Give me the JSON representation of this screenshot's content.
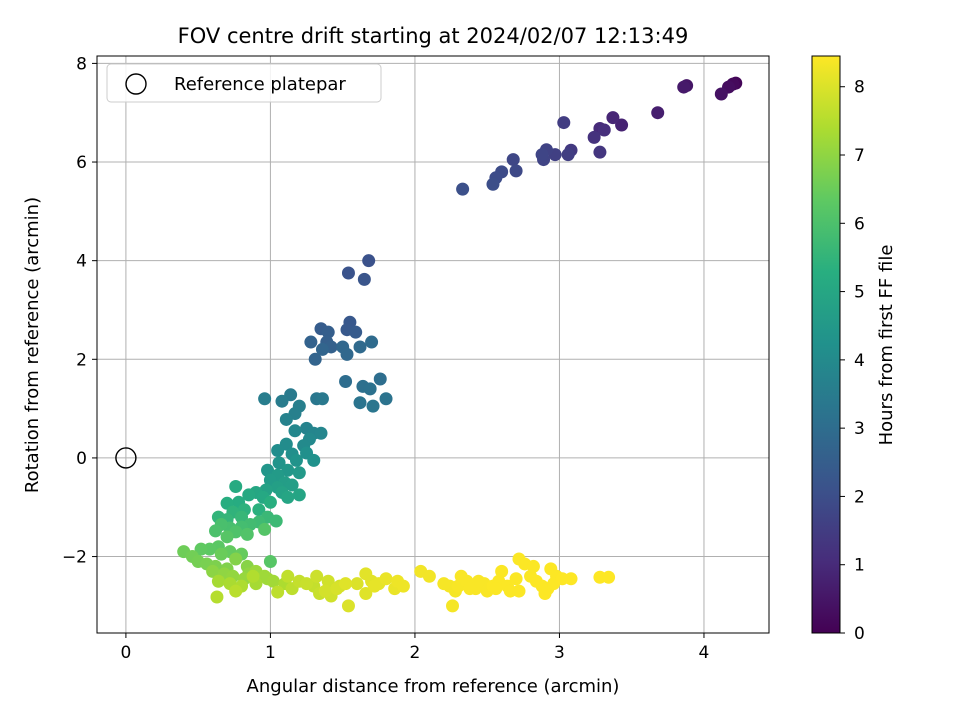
{
  "chart_data": {
    "type": "scatter",
    "title": "FOV centre drift starting at 2024/02/07 12:13:49",
    "xlabel": "Angular distance from reference (arcmin)",
    "ylabel": "Rotation from reference (arcmin)",
    "xlim": [
      -0.2,
      4.45
    ],
    "ylim": [
      -3.55,
      8.15
    ],
    "xticks": [
      0,
      1,
      2,
      3,
      4
    ],
    "xtick_labels": [
      "0",
      "1",
      "2",
      "3",
      "4"
    ],
    "yticks": [
      -2,
      0,
      2,
      4,
      6,
      8
    ],
    "ytick_labels": [
      "−2",
      "0",
      "2",
      "4",
      "6",
      "8"
    ],
    "grid": true,
    "legend": {
      "placement": "top-left",
      "entries": [
        "Reference platepar"
      ]
    },
    "colorbar": {
      "label": "Hours from first FF file",
      "colormap": "viridis",
      "range": [
        0,
        8.45
      ],
      "ticks": [
        0,
        1,
        2,
        3,
        4,
        5,
        6,
        7,
        8
      ],
      "tick_labels": [
        "0",
        "1",
        "2",
        "3",
        "4",
        "5",
        "6",
        "7",
        "8"
      ]
    },
    "reference": {
      "name": "Reference platepar",
      "x": 0,
      "y": 0
    },
    "series": [
      {
        "color_by": "Hours from first FF file",
        "points": [
          [
            4.22,
            7.6,
            0.1
          ],
          [
            4.2,
            7.58,
            0.2
          ],
          [
            4.17,
            7.52,
            0.3
          ],
          [
            4.12,
            7.38,
            0.4
          ],
          [
            3.88,
            7.55,
            0.5
          ],
          [
            3.86,
            7.52,
            0.6
          ],
          [
            3.68,
            7.0,
            0.7
          ],
          [
            3.43,
            6.75,
            0.8
          ],
          [
            3.37,
            6.9,
            0.9
          ],
          [
            3.28,
            6.68,
            1.0
          ],
          [
            3.31,
            6.65,
            1.1
          ],
          [
            3.24,
            6.5,
            1.2
          ],
          [
            3.28,
            6.2,
            1.3
          ],
          [
            3.08,
            6.24,
            1.4
          ],
          [
            3.03,
            6.8,
            1.5
          ],
          [
            3.06,
            6.15,
            1.55
          ],
          [
            2.97,
            6.15,
            1.6
          ],
          [
            2.91,
            6.25,
            1.65
          ],
          [
            2.89,
            6.05,
            1.7
          ],
          [
            2.88,
            6.15,
            1.75
          ],
          [
            2.68,
            6.05,
            1.8
          ],
          [
            2.7,
            5.82,
            1.85
          ],
          [
            2.6,
            5.8,
            1.9
          ],
          [
            2.56,
            5.68,
            1.95
          ],
          [
            2.54,
            5.55,
            2.0
          ],
          [
            2.33,
            5.45,
            2.05
          ],
          [
            1.68,
            4.0,
            2.1
          ],
          [
            1.54,
            3.75,
            2.15
          ],
          [
            1.65,
            3.62,
            2.2
          ],
          [
            1.55,
            2.75,
            2.3
          ],
          [
            1.53,
            2.6,
            2.35
          ],
          [
            1.59,
            2.55,
            2.4
          ],
          [
            1.35,
            2.62,
            2.45
          ],
          [
            1.4,
            2.55,
            2.5
          ],
          [
            1.39,
            2.35,
            2.55
          ],
          [
            1.42,
            2.25,
            2.6
          ],
          [
            1.28,
            2.35,
            2.65
          ],
          [
            1.31,
            2.0,
            2.7
          ],
          [
            1.36,
            2.2,
            2.75
          ],
          [
            1.5,
            2.25,
            2.8
          ],
          [
            1.53,
            2.1,
            2.85
          ],
          [
            1.62,
            2.25,
            2.9
          ],
          [
            1.7,
            2.35,
            2.95
          ],
          [
            1.52,
            1.55,
            3.0
          ],
          [
            1.76,
            1.6,
            3.05
          ],
          [
            1.64,
            1.45,
            3.1
          ],
          [
            1.69,
            1.4,
            3.15
          ],
          [
            1.8,
            1.2,
            3.2
          ],
          [
            1.62,
            1.12,
            3.25
          ],
          [
            1.71,
            1.05,
            3.3
          ],
          [
            1.32,
            1.2,
            3.35
          ],
          [
            1.36,
            1.2,
            3.4
          ],
          [
            1.14,
            1.28,
            3.45
          ],
          [
            1.08,
            1.15,
            3.5
          ],
          [
            0.96,
            1.2,
            3.55
          ],
          [
            1.2,
            1.05,
            3.6
          ],
          [
            1.17,
            0.9,
            3.65
          ],
          [
            1.11,
            0.78,
            3.7
          ],
          [
            1.25,
            0.6,
            3.75
          ],
          [
            1.3,
            0.5,
            3.8
          ],
          [
            1.35,
            0.5,
            3.85
          ],
          [
            1.17,
            0.55,
            3.9
          ],
          [
            1.27,
            0.38,
            3.95
          ],
          [
            1.23,
            0.25,
            4.0
          ],
          [
            1.11,
            0.28,
            4.05
          ],
          [
            1.05,
            0.15,
            4.1
          ],
          [
            1.15,
            0.08,
            4.15
          ],
          [
            1.25,
            0.1,
            4.2
          ],
          [
            1.3,
            -0.05,
            4.25
          ],
          [
            1.18,
            -0.05,
            4.3
          ],
          [
            1.06,
            -0.1,
            4.35
          ],
          [
            0.98,
            -0.25,
            4.4
          ],
          [
            1.12,
            -0.25,
            4.45
          ],
          [
            1.2,
            -0.3,
            4.5
          ],
          [
            1.05,
            -0.35,
            4.55
          ],
          [
            1.0,
            -0.45,
            4.6
          ],
          [
            1.1,
            -0.5,
            4.65
          ],
          [
            1.15,
            -0.55,
            4.7
          ],
          [
            1.05,
            -0.6,
            4.75
          ],
          [
            0.97,
            -0.65,
            4.8
          ],
          [
            1.08,
            -0.7,
            4.85
          ],
          [
            1.2,
            -0.75,
            4.9
          ],
          [
            1.12,
            -0.8,
            4.95
          ],
          [
            0.9,
            -0.7,
            5.0
          ],
          [
            0.95,
            -0.8,
            5.05
          ],
          [
            0.85,
            -0.75,
            5.1
          ],
          [
            0.76,
            -0.58,
            5.15
          ],
          [
            0.78,
            -0.9,
            5.2
          ],
          [
            0.7,
            -0.92,
            5.25
          ],
          [
            1.0,
            -0.9,
            5.3
          ],
          [
            0.92,
            -1.05,
            5.35
          ],
          [
            0.82,
            -1.05,
            5.4
          ],
          [
            0.74,
            -1.1,
            5.45
          ],
          [
            0.64,
            -1.2,
            5.5
          ],
          [
            0.7,
            -1.25,
            5.55
          ],
          [
            0.8,
            -1.2,
            5.6
          ],
          [
            0.98,
            -1.2,
            5.65
          ],
          [
            1.04,
            -1.28,
            5.7
          ],
          [
            0.92,
            -1.3,
            5.75
          ],
          [
            0.86,
            -1.35,
            5.8
          ],
          [
            0.8,
            -1.4,
            5.85
          ],
          [
            0.72,
            -1.42,
            5.9
          ],
          [
            0.66,
            -1.35,
            5.95
          ],
          [
            0.62,
            -1.48,
            6.0
          ],
          [
            0.76,
            -1.5,
            6.05
          ],
          [
            0.84,
            -1.55,
            6.1
          ],
          [
            0.96,
            -1.45,
            6.15
          ],
          [
            0.7,
            -1.6,
            6.2
          ],
          [
            0.64,
            -1.8,
            6.25
          ],
          [
            0.58,
            -1.85,
            6.3
          ],
          [
            0.52,
            -1.85,
            6.35
          ],
          [
            0.72,
            -1.9,
            6.4
          ],
          [
            0.8,
            -1.95,
            6.45
          ],
          [
            0.66,
            -1.95,
            6.5
          ],
          [
            0.4,
            -1.9,
            6.55
          ],
          [
            0.46,
            -2.0,
            6.6
          ],
          [
            0.5,
            -2.1,
            6.65
          ],
          [
            0.56,
            -2.15,
            6.7
          ],
          [
            0.62,
            -2.2,
            6.75
          ],
          [
            0.7,
            -2.25,
            6.8
          ],
          [
            0.76,
            -2.05,
            6.85
          ],
          [
            0.84,
            -2.2,
            6.9
          ],
          [
            0.6,
            -2.3,
            6.95
          ],
          [
            0.68,
            -2.35,
            7.0
          ],
          [
            0.74,
            -2.4,
            7.05
          ],
          [
            0.82,
            -2.45,
            7.1
          ],
          [
            0.9,
            -2.3,
            7.15
          ],
          [
            0.96,
            -2.4,
            7.2
          ],
          [
            1.02,
            -2.5,
            7.25
          ],
          [
            0.64,
            -2.5,
            7.3
          ],
          [
            0.72,
            -2.55,
            7.35
          ],
          [
            0.8,
            -2.6,
            7.4
          ],
          [
            0.88,
            -2.4,
            7.45
          ],
          [
            0.63,
            -2.82,
            7.5
          ],
          [
            0.76,
            -2.7,
            7.55
          ],
          [
            1.05,
            -2.72,
            7.6
          ],
          [
            1.12,
            -2.4,
            7.65
          ],
          [
            1.2,
            -2.5,
            7.7
          ],
          [
            1.25,
            -2.55,
            7.75
          ],
          [
            1.32,
            -2.4,
            7.8
          ],
          [
            1.4,
            -2.5,
            7.85
          ],
          [
            1.38,
            -2.7,
            7.9
          ],
          [
            1.46,
            -2.65,
            7.95
          ],
          [
            1.54,
            -3.0,
            8.0
          ],
          [
            1.52,
            -2.55,
            8.05
          ],
          [
            1.66,
            -2.35,
            8.1
          ],
          [
            1.72,
            -2.6,
            8.15
          ],
          [
            1.8,
            -2.45,
            8.2
          ],
          [
            1.88,
            -2.5,
            8.25
          ],
          [
            2.04,
            -2.3,
            8.3
          ],
          [
            2.28,
            -2.7,
            8.35
          ],
          [
            2.32,
            -2.4,
            8.4
          ],
          [
            1.0,
            -2.1,
            6.2
          ],
          [
            0.85,
            -2.35,
            7.0
          ],
          [
            0.9,
            -2.55,
            7.3
          ],
          [
            0.98,
            -2.45,
            7.2
          ],
          [
            1.1,
            -2.55,
            7.4
          ],
          [
            1.15,
            -2.65,
            7.6
          ],
          [
            1.3,
            -2.6,
            7.7
          ],
          [
            1.34,
            -2.75,
            7.75
          ],
          [
            1.42,
            -2.8,
            7.85
          ],
          [
            1.48,
            -2.6,
            7.9
          ],
          [
            1.6,
            -2.55,
            8.0
          ],
          [
            1.66,
            -2.75,
            8.05
          ],
          [
            1.7,
            -2.5,
            8.1
          ],
          [
            1.75,
            -2.55,
            8.15
          ],
          [
            1.86,
            -2.65,
            8.2
          ],
          [
            1.92,
            -2.6,
            8.25
          ],
          [
            2.1,
            -2.4,
            8.3
          ],
          [
            2.24,
            -2.6,
            8.35
          ],
          [
            2.26,
            -3.0,
            8.35
          ],
          [
            2.36,
            -2.5,
            8.4
          ],
          [
            2.42,
            -2.65,
            8.4
          ],
          [
            2.48,
            -2.55,
            8.4
          ],
          [
            2.5,
            -2.7,
            8.4
          ],
          [
            2.54,
            -2.6,
            8.42
          ],
          [
            2.58,
            -2.5,
            8.42
          ],
          [
            2.6,
            -2.3,
            8.42
          ],
          [
            2.64,
            -2.6,
            8.42
          ],
          [
            2.7,
            -2.45,
            8.43
          ],
          [
            2.72,
            -2.05,
            8.43
          ],
          [
            2.76,
            -2.15,
            8.43
          ],
          [
            2.8,
            -2.4,
            8.43
          ],
          [
            2.84,
            -2.5,
            8.44
          ],
          [
            2.88,
            -2.6,
            8.44
          ],
          [
            2.9,
            -2.75,
            8.44
          ],
          [
            2.94,
            -2.25,
            8.44
          ],
          [
            2.98,
            -2.4,
            8.44
          ],
          [
            3.02,
            -2.45,
            8.45
          ],
          [
            3.08,
            -2.45,
            8.45
          ],
          [
            3.28,
            -2.42,
            8.45
          ],
          [
            3.34,
            -2.42,
            8.45
          ],
          [
            2.66,
            -2.7,
            8.42
          ],
          [
            2.72,
            -2.7,
            8.43
          ],
          [
            2.82,
            -2.2,
            8.43
          ],
          [
            2.92,
            -2.65,
            8.44
          ],
          [
            2.96,
            -2.55,
            8.44
          ],
          [
            2.56,
            -2.65,
            8.42
          ],
          [
            2.44,
            -2.5,
            8.4
          ],
          [
            2.38,
            -2.65,
            8.4
          ],
          [
            2.3,
            -2.6,
            8.38
          ],
          [
            2.2,
            -2.55,
            8.36
          ]
        ]
      }
    ]
  }
}
